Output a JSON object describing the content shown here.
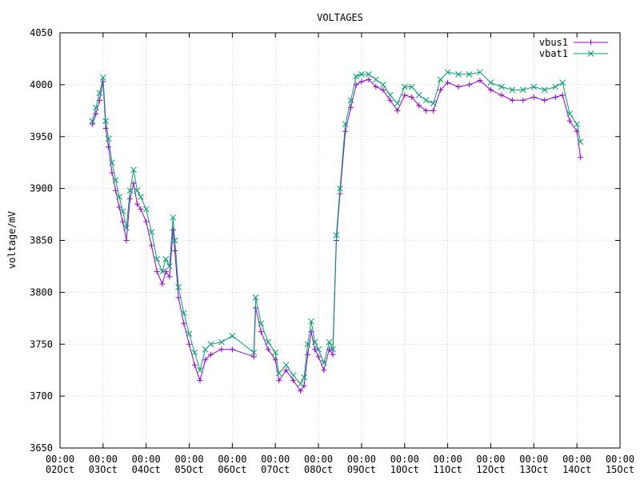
{
  "chart_data": {
    "type": "line",
    "title": "VOLTAGES",
    "xlabel": "",
    "ylabel": "voltage/mV",
    "ylim": [
      3650,
      4050
    ],
    "xlim": [
      "2024-10-02T00:00",
      "2024-10-15T00:00"
    ],
    "x_ticks": [
      {
        "date": "2024-10-02T00:00",
        "time": "00:00",
        "day": "02Oct"
      },
      {
        "date": "2024-10-03T00:00",
        "time": "00:00",
        "day": "03Oct"
      },
      {
        "date": "2024-10-04T00:00",
        "time": "00:00",
        "day": "04Oct"
      },
      {
        "date": "2024-10-05T00:00",
        "time": "00:00",
        "day": "05Oct"
      },
      {
        "date": "2024-10-06T00:00",
        "time": "00:00",
        "day": "06Oct"
      },
      {
        "date": "2024-10-07T00:00",
        "time": "00:00",
        "day": "07Oct"
      },
      {
        "date": "2024-10-08T00:00",
        "time": "00:00",
        "day": "08Oct"
      },
      {
        "date": "2024-10-09T00:00",
        "time": "00:00",
        "day": "09Oct"
      },
      {
        "date": "2024-10-10T00:00",
        "time": "00:00",
        "day": "10Oct"
      },
      {
        "date": "2024-10-11T00:00",
        "time": "00:00",
        "day": "11Oct"
      },
      {
        "date": "2024-10-12T00:00",
        "time": "00:00",
        "day": "12Oct"
      },
      {
        "date": "2024-10-13T00:00",
        "time": "00:00",
        "day": "13Oct"
      },
      {
        "date": "2024-10-14T00:00",
        "time": "00:00",
        "day": "14Oct"
      },
      {
        "date": "2024-10-15T00:00",
        "time": "00:00",
        "day": "15Oct"
      }
    ],
    "y_ticks": [
      3650,
      3700,
      3750,
      3800,
      3850,
      3900,
      3950,
      4000,
      4050
    ],
    "grid": true,
    "legend": "top-right",
    "series": [
      {
        "name": "vbus1",
        "color": "#9400d3",
        "marker": "plus",
        "points": [
          [
            "2024-10-02T18:00",
            3962
          ],
          [
            "2024-10-02T20:00",
            3972
          ],
          [
            "2024-10-02T22:00",
            3985
          ],
          [
            "2024-10-03T00:00",
            4003
          ],
          [
            "2024-10-03T01:30",
            3958
          ],
          [
            "2024-10-03T03:00",
            3940
          ],
          [
            "2024-10-03T05:00",
            3915
          ],
          [
            "2024-10-03T07:00",
            3898
          ],
          [
            "2024-10-03T09:00",
            3882
          ],
          [
            "2024-10-03T11:00",
            3868
          ],
          [
            "2024-10-03T13:00",
            3850
          ],
          [
            "2024-10-03T15:00",
            3890
          ],
          [
            "2024-10-03T17:00",
            3905
          ],
          [
            "2024-10-03T19:00",
            3885
          ],
          [
            "2024-10-03T21:00",
            3880
          ],
          [
            "2024-10-04T00:00",
            3868
          ],
          [
            "2024-10-04T03:00",
            3845
          ],
          [
            "2024-10-04T06:00",
            3820
          ],
          [
            "2024-10-04T09:00",
            3808
          ],
          [
            "2024-10-04T11:00",
            3820
          ],
          [
            "2024-10-04T13:00",
            3815
          ],
          [
            "2024-10-04T15:00",
            3860
          ],
          [
            "2024-10-04T16:00",
            3840
          ],
          [
            "2024-10-04T18:00",
            3795
          ],
          [
            "2024-10-04T21:00",
            3770
          ],
          [
            "2024-10-05T00:00",
            3750
          ],
          [
            "2024-10-05T03:00",
            3730
          ],
          [
            "2024-10-05T06:00",
            3715
          ],
          [
            "2024-10-05T09:00",
            3735
          ],
          [
            "2024-10-05T12:00",
            3740
          ],
          [
            "2024-10-05T18:00",
            3745
          ],
          [
            "2024-10-06T00:00",
            3745
          ],
          [
            "2024-10-06T12:00",
            3738
          ],
          [
            "2024-10-06T13:00",
            3785
          ],
          [
            "2024-10-06T16:00",
            3762
          ],
          [
            "2024-10-06T20:00",
            3745
          ],
          [
            "2024-10-07T00:00",
            3735
          ],
          [
            "2024-10-07T02:00",
            3715
          ],
          [
            "2024-10-07T06:00",
            3725
          ],
          [
            "2024-10-07T10:00",
            3715
          ],
          [
            "2024-10-07T14:00",
            3705
          ],
          [
            "2024-10-07T16:00",
            3710
          ],
          [
            "2024-10-07T18:00",
            3740
          ],
          [
            "2024-10-07T20:00",
            3762
          ],
          [
            "2024-10-07T22:00",
            3745
          ],
          [
            "2024-10-08T00:00",
            3738
          ],
          [
            "2024-10-08T03:00",
            3725
          ],
          [
            "2024-10-08T06:00",
            3745
          ],
          [
            "2024-10-08T08:00",
            3740
          ],
          [
            "2024-10-08T10:00",
            3850
          ],
          [
            "2024-10-08T12:00",
            3895
          ],
          [
            "2024-10-08T15:00",
            3955
          ],
          [
            "2024-10-08T18:00",
            3978
          ],
          [
            "2024-10-08T21:00",
            4000
          ],
          [
            "2024-10-09T00:00",
            4003
          ],
          [
            "2024-10-09T04:00",
            4005
          ],
          [
            "2024-10-09T08:00",
            3998
          ],
          [
            "2024-10-09T12:00",
            3995
          ],
          [
            "2024-10-09T16:00",
            3985
          ],
          [
            "2024-10-09T20:00",
            3975
          ],
          [
            "2024-10-10T00:00",
            3990
          ],
          [
            "2024-10-10T04:00",
            3988
          ],
          [
            "2024-10-10T08:00",
            3980
          ],
          [
            "2024-10-10T12:00",
            3975
          ],
          [
            "2024-10-10T16:00",
            3975
          ],
          [
            "2024-10-10T20:00",
            3995
          ],
          [
            "2024-10-11T00:00",
            4002
          ],
          [
            "2024-10-11T06:00",
            3998
          ],
          [
            "2024-10-11T12:00",
            4000
          ],
          [
            "2024-10-11T18:00",
            4004
          ],
          [
            "2024-10-12T00:00",
            3995
          ],
          [
            "2024-10-12T06:00",
            3990
          ],
          [
            "2024-10-12T12:00",
            3985
          ],
          [
            "2024-10-12T18:00",
            3985
          ],
          [
            "2024-10-13T00:00",
            3988
          ],
          [
            "2024-10-13T06:00",
            3985
          ],
          [
            "2024-10-13T12:00",
            3988
          ],
          [
            "2024-10-13T16:00",
            3990
          ],
          [
            "2024-10-13T20:00",
            3965
          ],
          [
            "2024-10-14T00:00",
            3955
          ],
          [
            "2024-10-14T02:00",
            3930
          ]
        ]
      },
      {
        "name": "vbat1",
        "color": "#009e73",
        "marker": "cross",
        "points": [
          [
            "2024-10-02T18:00",
            3965
          ],
          [
            "2024-10-02T20:00",
            3978
          ],
          [
            "2024-10-02T22:00",
            3992
          ],
          [
            "2024-10-03T00:00",
            4007
          ],
          [
            "2024-10-03T01:30",
            3965
          ],
          [
            "2024-10-03T03:00",
            3948
          ],
          [
            "2024-10-03T05:00",
            3925
          ],
          [
            "2024-10-03T07:00",
            3908
          ],
          [
            "2024-10-03T09:00",
            3892
          ],
          [
            "2024-10-03T11:00",
            3878
          ],
          [
            "2024-10-03T13:00",
            3862
          ],
          [
            "2024-10-03T15:00",
            3898
          ],
          [
            "2024-10-03T17:00",
            3918
          ],
          [
            "2024-10-03T19:00",
            3898
          ],
          [
            "2024-10-03T21:00",
            3892
          ],
          [
            "2024-10-04T00:00",
            3880
          ],
          [
            "2024-10-04T03:00",
            3858
          ],
          [
            "2024-10-04T06:00",
            3832
          ],
          [
            "2024-10-04T09:00",
            3820
          ],
          [
            "2024-10-04T11:00",
            3832
          ],
          [
            "2024-10-04T13:00",
            3825
          ],
          [
            "2024-10-04T15:00",
            3872
          ],
          [
            "2024-10-04T16:00",
            3850
          ],
          [
            "2024-10-04T18:00",
            3805
          ],
          [
            "2024-10-04T21:00",
            3780
          ],
          [
            "2024-10-05T00:00",
            3760
          ],
          [
            "2024-10-05T03:00",
            3742
          ],
          [
            "2024-10-05T06:00",
            3725
          ],
          [
            "2024-10-05T09:00",
            3745
          ],
          [
            "2024-10-05T12:00",
            3750
          ],
          [
            "2024-10-05T18:00",
            3752
          ],
          [
            "2024-10-06T00:00",
            3758
          ],
          [
            "2024-10-06T12:00",
            3742
          ],
          [
            "2024-10-06T13:00",
            3795
          ],
          [
            "2024-10-06T16:00",
            3770
          ],
          [
            "2024-10-06T20:00",
            3752
          ],
          [
            "2024-10-07T00:00",
            3742
          ],
          [
            "2024-10-07T02:00",
            3722
          ],
          [
            "2024-10-07T06:00",
            3730
          ],
          [
            "2024-10-07T10:00",
            3720
          ],
          [
            "2024-10-07T14:00",
            3712
          ],
          [
            "2024-10-07T16:00",
            3718
          ],
          [
            "2024-10-07T18:00",
            3750
          ],
          [
            "2024-10-07T20:00",
            3772
          ],
          [
            "2024-10-07T22:00",
            3752
          ],
          [
            "2024-10-08T00:00",
            3745
          ],
          [
            "2024-10-08T03:00",
            3732
          ],
          [
            "2024-10-08T06:00",
            3752
          ],
          [
            "2024-10-08T08:00",
            3745
          ],
          [
            "2024-10-08T10:00",
            3855
          ],
          [
            "2024-10-08T12:00",
            3900
          ],
          [
            "2024-10-08T15:00",
            3962
          ],
          [
            "2024-10-08T18:00",
            3985
          ],
          [
            "2024-10-08T21:00",
            4008
          ],
          [
            "2024-10-09T00:00",
            4010
          ],
          [
            "2024-10-09T04:00",
            4010
          ],
          [
            "2024-10-09T08:00",
            4005
          ],
          [
            "2024-10-09T12:00",
            4000
          ],
          [
            "2024-10-09T16:00",
            3990
          ],
          [
            "2024-10-09T20:00",
            3982
          ],
          [
            "2024-10-10T00:00",
            3998
          ],
          [
            "2024-10-10T04:00",
            3998
          ],
          [
            "2024-10-10T08:00",
            3990
          ],
          [
            "2024-10-10T12:00",
            3985
          ],
          [
            "2024-10-10T16:00",
            3982
          ],
          [
            "2024-10-10T20:00",
            4005
          ],
          [
            "2024-10-11T00:00",
            4012
          ],
          [
            "2024-10-11T06:00",
            4010
          ],
          [
            "2024-10-11T12:00",
            4010
          ],
          [
            "2024-10-11T18:00",
            4012
          ],
          [
            "2024-10-12T00:00",
            4002
          ],
          [
            "2024-10-12T06:00",
            3998
          ],
          [
            "2024-10-12T12:00",
            3995
          ],
          [
            "2024-10-12T18:00",
            3995
          ],
          [
            "2024-10-13T00:00",
            3998
          ],
          [
            "2024-10-13T06:00",
            3995
          ],
          [
            "2024-10-13T12:00",
            3998
          ],
          [
            "2024-10-13T16:00",
            4002
          ],
          [
            "2024-10-13T20:00",
            3972
          ],
          [
            "2024-10-14T00:00",
            3962
          ],
          [
            "2024-10-14T02:00",
            3945
          ]
        ]
      }
    ]
  }
}
